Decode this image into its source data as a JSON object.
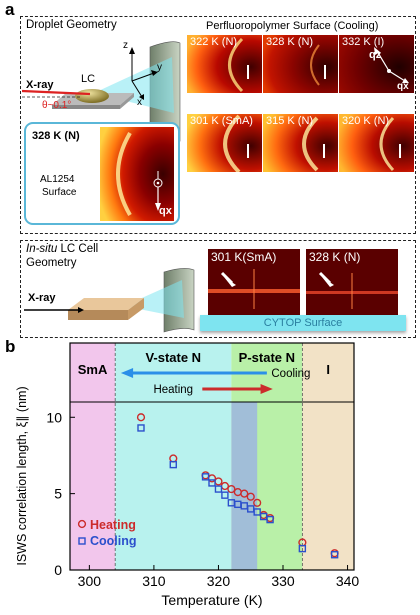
{
  "panel_a": {
    "letter": "a",
    "droplet_title": "Droplet Geometry",
    "surface_title": "Perfluoropolymer Surface (Cooling)",
    "xray": "X-ray",
    "lc": "LC",
    "theta": "θ~0.1°",
    "axis_z": "z",
    "axis_y": "y",
    "axis_x": "x",
    "inset_temp": "328 K (N)",
    "inset_material": "AL1254",
    "inset_surface": "Surface",
    "inset_qx": "qx",
    "tiles": [
      {
        "label": "322 K (N)"
      },
      {
        "label": "328 K (N)"
      },
      {
        "label": "332 K (I)"
      },
      {
        "label": "301 K (SmA)"
      },
      {
        "label": "315 K (N)"
      },
      {
        "label": "320 K (N)"
      }
    ],
    "tile_qz": "qz",
    "tile_qx": "qx",
    "cell_title_italic": "In-situ",
    "cell_title_rest": " LC Cell",
    "cell_title_line2": "Geometry",
    "cell_xray": "X-ray",
    "cell_tile1": "301 K(SmA)",
    "cell_tile2": "328 K (N)",
    "cytop": "CYTOP Surface"
  },
  "panel_b": {
    "letter": "b",
    "phase_sma": "SmA",
    "phase_v": "V-state N",
    "phase_p": "P-state N",
    "phase_i": "I",
    "cooling": "Cooling",
    "heating": "Heating",
    "legend_heating": "Heating",
    "legend_cooling": "Cooling"
  },
  "chart_data": {
    "type": "scatter",
    "xlabel": "Temperature (K)",
    "ylabel": "ISWS correlation length, ξ∥ (nm)",
    "xlim": [
      297,
      341
    ],
    "ylim": [
      0,
      11
    ],
    "xticks": [
      300,
      310,
      320,
      330,
      340
    ],
    "yticks": [
      0,
      5,
      10
    ],
    "phase_regions": [
      {
        "name": "SmA",
        "x": [
          297,
          304
        ],
        "color": "#f2c6ec"
      },
      {
        "name": "V-state N",
        "x": [
          304,
          322
        ],
        "color": "#b8f2ee"
      },
      {
        "name": "P-state N",
        "x": [
          322,
          333
        ],
        "color": "#b9f0a8"
      },
      {
        "name": "I",
        "x": [
          333,
          341
        ],
        "color": "#f2e2c6"
      }
    ],
    "highlight_band": {
      "x": [
        322,
        326
      ],
      "color": "#9aaee8"
    },
    "series": [
      {
        "name": "Heating",
        "marker": "circle",
        "color": "#cc2b2b",
        "points": [
          [
            308,
            10.0
          ],
          [
            313,
            7.3
          ],
          [
            318,
            6.2
          ],
          [
            319,
            6.0
          ],
          [
            320,
            5.8
          ],
          [
            321,
            5.5
          ],
          [
            322,
            5.3
          ],
          [
            323,
            5.1
          ],
          [
            324,
            5.0
          ],
          [
            325,
            4.8
          ],
          [
            326,
            4.4
          ],
          [
            327,
            3.6
          ],
          [
            328,
            3.4
          ],
          [
            333,
            1.8
          ],
          [
            338,
            1.1
          ]
        ]
      },
      {
        "name": "Cooling",
        "marker": "square",
        "color": "#2b4fcc",
        "points": [
          [
            308,
            9.3
          ],
          [
            313,
            6.9
          ],
          [
            318,
            6.1
          ],
          [
            319,
            5.7
          ],
          [
            320,
            5.3
          ],
          [
            321,
            4.9
          ],
          [
            322,
            4.4
          ],
          [
            323,
            4.3
          ],
          [
            324,
            4.2
          ],
          [
            325,
            4.0
          ],
          [
            326,
            3.8
          ],
          [
            327,
            3.5
          ],
          [
            328,
            3.3
          ],
          [
            333,
            1.4
          ],
          [
            338,
            1.0
          ]
        ]
      }
    ]
  },
  "colors": {
    "heating": "#cc2b2b",
    "cooling": "#2b4fcc",
    "inset_border": "#5ab7d8",
    "cytop": "#7ee4f0"
  }
}
